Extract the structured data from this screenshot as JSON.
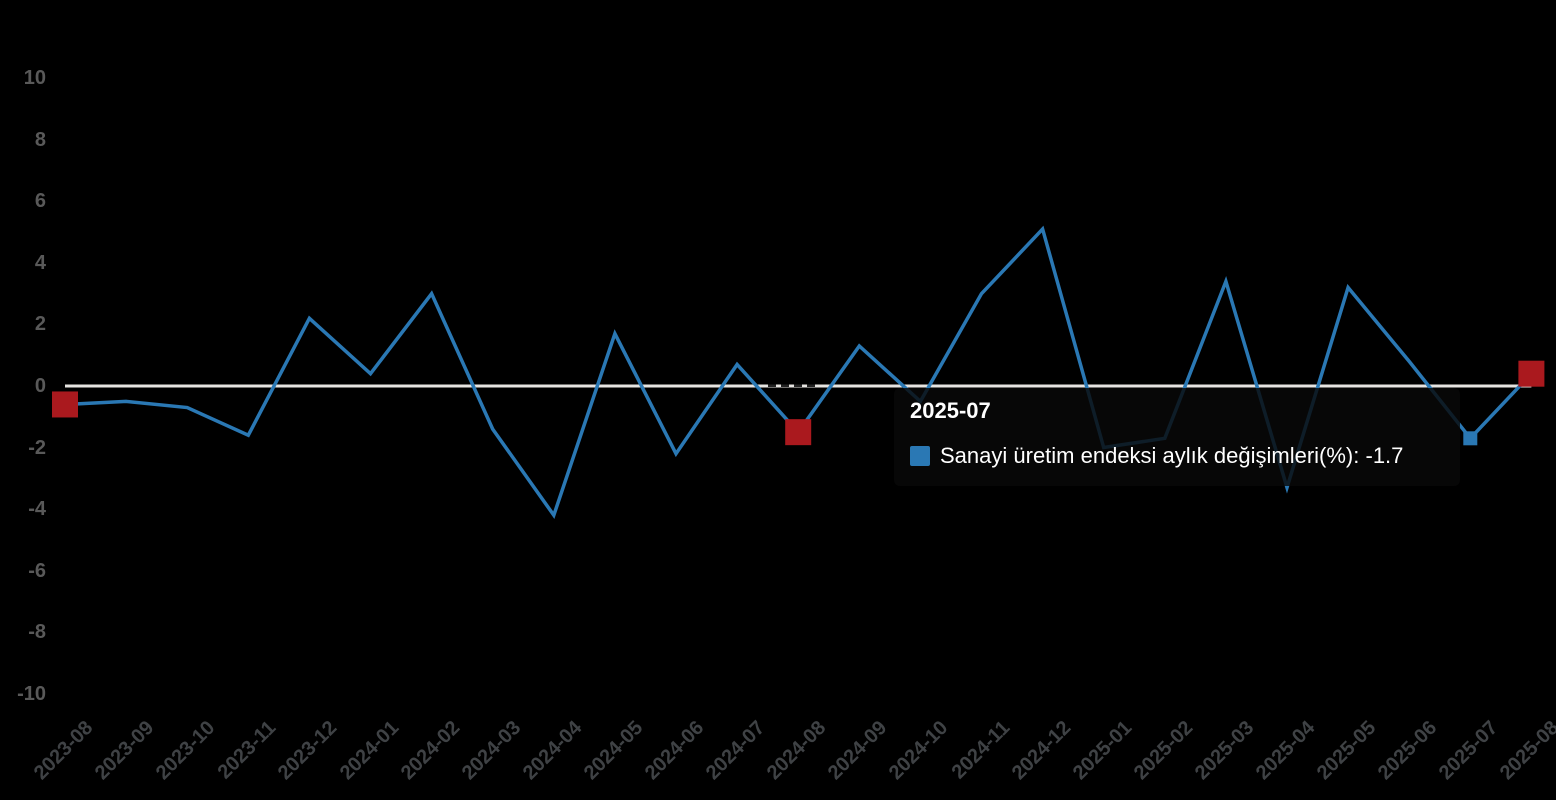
{
  "chart_data": {
    "type": "line",
    "title": "",
    "xlabel": "",
    "ylabel": "",
    "categories": [
      "2023-08",
      "2023-09",
      "2023-10",
      "2023-11",
      "2023-12",
      "2024-01",
      "2024-02",
      "2024-03",
      "2024-04",
      "2024-05",
      "2024-06",
      "2024-07",
      "2024-08",
      "2024-09",
      "2024-10",
      "2024-11",
      "2024-12",
      "2025-01",
      "2025-02",
      "2025-03",
      "2025-04",
      "2025-05",
      "2025-06",
      "2025-07",
      "2025-08"
    ],
    "series": [
      {
        "name": "Sanayi üretim endeksi aylık değişimleri(%)",
        "values": [
          -0.6,
          -0.5,
          -0.7,
          -1.6,
          2.2,
          0.4,
          3.0,
          -1.4,
          -4.2,
          1.7,
          -2.2,
          0.7,
          -1.5,
          1.3,
          -0.5,
          3.0,
          5.1,
          -2.0,
          -1.7,
          3.4,
          -3.3,
          3.2,
          0.8,
          -1.7,
          0.4
        ]
      }
    ],
    "ylim": [
      -10,
      10
    ],
    "y_ticks": [
      10,
      8,
      6,
      4,
      2,
      0,
      -2,
      -4,
      -6,
      -8,
      -10
    ],
    "grid": "off",
    "legend_position": "tooltip-only",
    "zero_baseline": true,
    "red_marker_categories": [
      "2023-08",
      "2024-08",
      "2025-08"
    ],
    "hovered_category": "2025-07"
  },
  "tooltip": {
    "title": "2025-07",
    "label": "Sanayi üretim endeksi aylık değişimleri(%)",
    "value": "-1.7"
  },
  "colors": {
    "background": "#000000",
    "line": "#2a78b4",
    "red_marker": "#aa191e",
    "hover_marker": "#2a78b4",
    "zero_line": "#e6e4e1",
    "y_label": "#595959",
    "x_label": "#3f4245",
    "tooltip_text": "#ffffff"
  }
}
